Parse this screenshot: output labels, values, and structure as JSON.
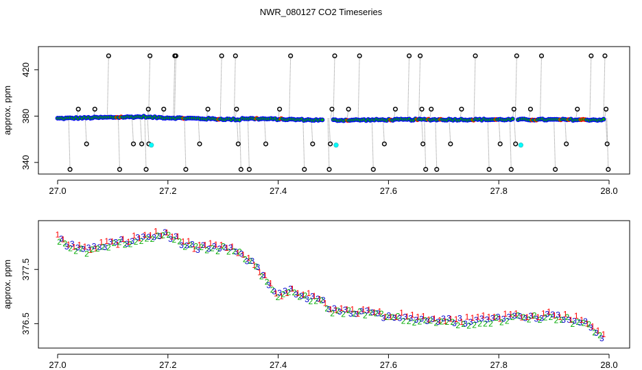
{
  "figure": {
    "title": "NWR_080127  CO2 Timeseries"
  },
  "chart_data": [
    {
      "type": "scatter",
      "title": "NWR_080127  CO2 Timeseries",
      "xlabel": "",
      "ylabel": "approx. ppm",
      "xlim": [
        27.0,
        28.0
      ],
      "ylim": [
        330,
        440
      ],
      "x_ticks": [
        "27.0",
        "27.2",
        "27.4",
        "27.6",
        "27.8",
        "28.0"
      ],
      "y_ticks": [
        "340",
        "380",
        "420"
      ],
      "colors": {
        "main_line": "#0000ff",
        "main_fill": "#00aa00",
        "main_outline": "#ff0000",
        "spike_markers": "#000000",
        "spike_lines": "#888888",
        "cyan_points": "#00ffff"
      },
      "main_series": {
        "name": "",
        "segments": [
          {
            "x": [
              27.0,
              27.16
            ],
            "y": [
              378,
              379.5
            ]
          },
          {
            "x": [
              27.165,
              27.33
            ],
            "y": [
              379,
              377
            ]
          },
          {
            "x": [
              27.335,
              27.48
            ],
            "y": [
              378,
              376.5
            ]
          },
          {
            "x": [
              27.5,
              27.66
            ],
            "y": [
              376.5,
              377
            ]
          },
          {
            "x": [
              27.665,
              27.825
            ],
            "y": [
              377,
              377
            ]
          },
          {
            "x": [
              27.835,
              27.99
            ],
            "y": [
              377,
              376.8
            ]
          }
        ]
      },
      "spikes": [
        {
          "x": 27.02,
          "y": 334
        },
        {
          "x": 27.035,
          "y": 386
        },
        {
          "x": 27.05,
          "y": 356
        },
        {
          "x": 27.065,
          "y": 386
        },
        {
          "x": 27.09,
          "y": 432
        },
        {
          "x": 27.11,
          "y": 334
        },
        {
          "x": 27.135,
          "y": 356
        },
        {
          "x": 27.15,
          "y": 356
        },
        {
          "x": 27.158,
          "y": 334
        },
        {
          "x": 27.162,
          "y": 386
        },
        {
          "x": 27.163,
          "y": 356
        },
        {
          "x": 27.165,
          "y": 432
        },
        {
          "x": 27.19,
          "y": 386
        },
        {
          "x": 27.21,
          "y": 432
        },
        {
          "x": 27.212,
          "y": 432
        },
        {
          "x": 27.23,
          "y": 334
        },
        {
          "x": 27.255,
          "y": 356
        },
        {
          "x": 27.27,
          "y": 386
        },
        {
          "x": 27.295,
          "y": 432
        },
        {
          "x": 27.32,
          "y": 432
        },
        {
          "x": 27.322,
          "y": 386
        },
        {
          "x": 27.325,
          "y": 356
        },
        {
          "x": 27.33,
          "y": 334
        },
        {
          "x": 27.345,
          "y": 334
        },
        {
          "x": 27.375,
          "y": 356
        },
        {
          "x": 27.4,
          "y": 386
        },
        {
          "x": 27.42,
          "y": 432
        },
        {
          "x": 27.445,
          "y": 334
        },
        {
          "x": 27.46,
          "y": 356
        },
        {
          "x": 27.49,
          "y": 334
        },
        {
          "x": 27.492,
          "y": 356
        },
        {
          "x": 27.495,
          "y": 386
        },
        {
          "x": 27.5,
          "y": 432
        },
        {
          "x": 27.525,
          "y": 386
        },
        {
          "x": 27.545,
          "y": 432
        },
        {
          "x": 27.57,
          "y": 334
        },
        {
          "x": 27.59,
          "y": 356
        },
        {
          "x": 27.61,
          "y": 386
        },
        {
          "x": 27.635,
          "y": 432
        },
        {
          "x": 27.655,
          "y": 432
        },
        {
          "x": 27.658,
          "y": 386
        },
        {
          "x": 27.66,
          "y": 356
        },
        {
          "x": 27.665,
          "y": 334
        },
        {
          "x": 27.675,
          "y": 386
        },
        {
          "x": 27.685,
          "y": 334
        },
        {
          "x": 27.71,
          "y": 356
        },
        {
          "x": 27.73,
          "y": 386
        },
        {
          "x": 27.755,
          "y": 432
        },
        {
          "x": 27.78,
          "y": 334
        },
        {
          "x": 27.8,
          "y": 356
        },
        {
          "x": 27.82,
          "y": 334
        },
        {
          "x": 27.825,
          "y": 386
        },
        {
          "x": 27.828,
          "y": 356
        },
        {
          "x": 27.83,
          "y": 432
        },
        {
          "x": 27.855,
          "y": 386
        },
        {
          "x": 27.875,
          "y": 432
        },
        {
          "x": 27.9,
          "y": 334
        },
        {
          "x": 27.92,
          "y": 356
        },
        {
          "x": 27.94,
          "y": 386
        },
        {
          "x": 27.965,
          "y": 432
        },
        {
          "x": 27.99,
          "y": 432
        },
        {
          "x": 27.992,
          "y": 386
        },
        {
          "x": 27.994,
          "y": 356
        },
        {
          "x": 27.996,
          "y": 334
        }
      ],
      "cyan_points": [
        {
          "x": 27.165,
          "y": 355
        },
        {
          "x": 27.5,
          "y": 355
        },
        {
          "x": 27.835,
          "y": 355
        }
      ]
    },
    {
      "type": "scatter",
      "title": "",
      "xlabel": "",
      "ylabel": "approx. ppm",
      "xlim": [
        27.0,
        28.0
      ],
      "ylim": [
        376.05,
        378.4
      ],
      "x_ticks": [
        "27.0",
        "27.2",
        "27.4",
        "27.6",
        "27.8",
        "28.0"
      ],
      "y_ticks": [
        "376.5",
        "377.5"
      ],
      "marker_labels": [
        "1",
        "2",
        "3"
      ],
      "marker_colors": {
        "1": "#ff0000",
        "2": "#00aa00",
        "3": "#0000cc"
      },
      "anchors": {
        "x": [
          27.0,
          27.02,
          27.05,
          27.09,
          27.12,
          27.16,
          27.2,
          27.23,
          27.25,
          27.3,
          27.33,
          27.36,
          27.38,
          27.4,
          27.42,
          27.48,
          27.5,
          27.55,
          27.6,
          27.65,
          27.7,
          27.75,
          27.8,
          27.85,
          27.9,
          27.95,
          27.98,
          27.99
        ],
        "y": [
          378.1,
          377.95,
          377.85,
          377.95,
          378.0,
          378.1,
          378.15,
          377.95,
          377.9,
          377.9,
          377.8,
          377.55,
          377.3,
          377.0,
          377.1,
          376.9,
          376.75,
          376.7,
          376.65,
          376.6,
          376.55,
          376.55,
          376.6,
          376.65,
          376.65,
          376.55,
          376.35,
          376.25
        ]
      }
    }
  ]
}
